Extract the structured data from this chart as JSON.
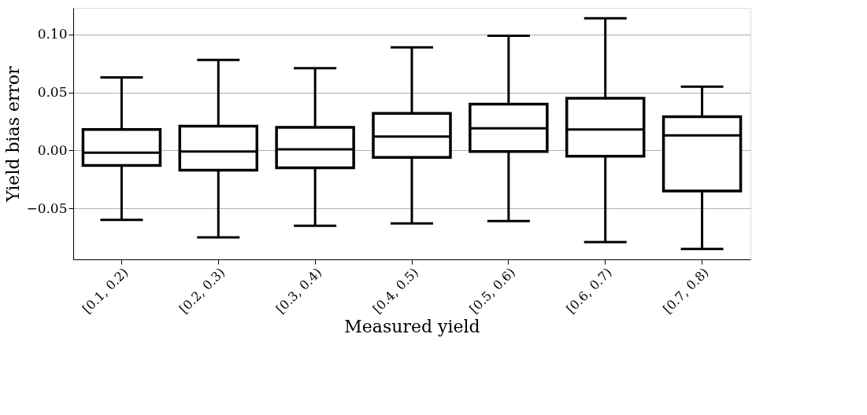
{
  "chart_data": {
    "type": "box",
    "xlabel": "Measured yield",
    "ylabel": "Yield bias error",
    "categories": [
      "[0.1, 0.2)",
      "[0.2, 0.3)",
      "[0.3, 0.4)",
      "[0.4, 0.5)",
      "[0.5, 0.6)",
      "[0.6, 0.7)",
      "[0.7, 0.8)"
    ],
    "boxes": [
      {
        "low": -0.06,
        "q1": -0.013,
        "median": -0.002,
        "q3": 0.018,
        "high": 0.063
      },
      {
        "low": -0.075,
        "q1": -0.017,
        "median": -0.001,
        "q3": 0.021,
        "high": 0.078
      },
      {
        "low": -0.065,
        "q1": -0.015,
        "median": 0.001,
        "q3": 0.02,
        "high": 0.071
      },
      {
        "low": -0.063,
        "q1": -0.006,
        "median": 0.012,
        "q3": 0.032,
        "high": 0.089
      },
      {
        "low": -0.061,
        "q1": -0.001,
        "median": 0.019,
        "q3": 0.04,
        "high": 0.099
      },
      {
        "low": -0.079,
        "q1": -0.005,
        "median": 0.018,
        "q3": 0.045,
        "high": 0.114
      },
      {
        "low": -0.085,
        "q1": -0.035,
        "median": 0.013,
        "q3": 0.029,
        "high": 0.055
      }
    ],
    "color": "#000000",
    "ylim": [
      -0.094,
      0.123
    ],
    "yticks": [
      {
        "value": -0.05,
        "label": "−0.05"
      },
      {
        "value": 0,
        "label": "0.00"
      },
      {
        "value": 0.05,
        "label": "0.05"
      },
      {
        "value": 0.1,
        "label": "0.10"
      }
    ],
    "grid": "y"
  }
}
